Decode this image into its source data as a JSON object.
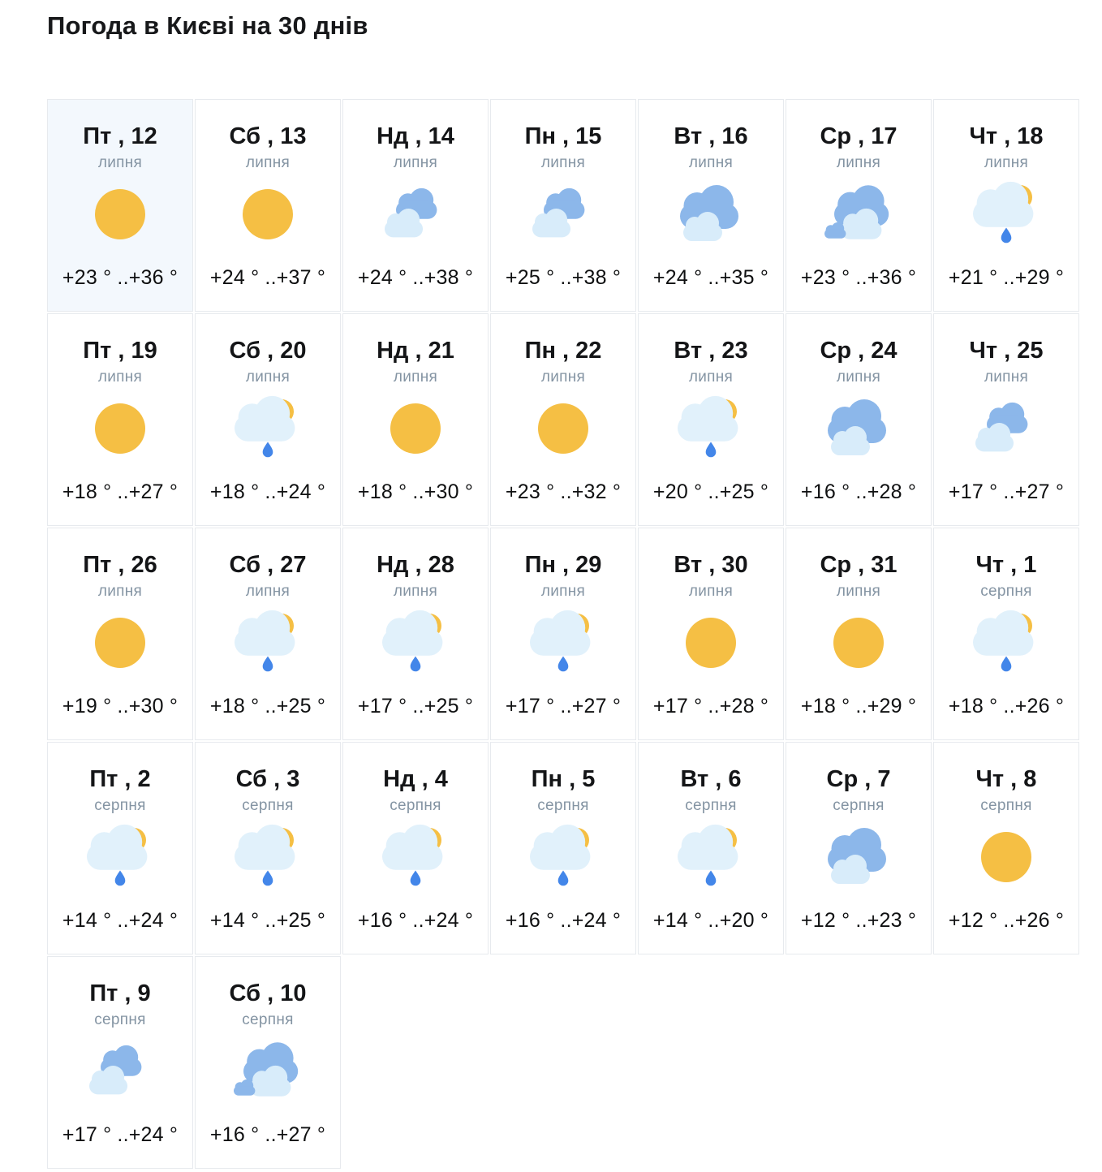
{
  "page": {
    "title": "Погода в Києві на 30 днів"
  },
  "colors": {
    "today_bg": "#f3f8fd",
    "card_border": "#e7eaee",
    "month_text": "#8494a3",
    "sun": "#f5bf44",
    "cloud_blue": "#8cb7ea",
    "cloud_light": "#d8ecfa",
    "cloud_pale": "#e1f1fb",
    "raindrop": "#4386e9"
  },
  "forecast": {
    "days": [
      {
        "label": "Пт , 12",
        "month": "липня",
        "icon": "sun",
        "temp": "+23 ° ..+36 °",
        "today": true
      },
      {
        "label": "Сб , 13",
        "month": "липня",
        "icon": "sun",
        "temp": "+24 ° ..+37 °",
        "today": false
      },
      {
        "label": "Нд , 14",
        "month": "липня",
        "icon": "cloudy",
        "temp": "+24 ° ..+38 °",
        "today": false
      },
      {
        "label": "Пн , 15",
        "month": "липня",
        "icon": "cloudy",
        "temp": "+25 ° ..+38 °",
        "today": false
      },
      {
        "label": "Вт , 16",
        "month": "липня",
        "icon": "mostly-cloudy",
        "temp": "+24 ° ..+35 °",
        "today": false
      },
      {
        "label": "Ср , 17",
        "month": "липня",
        "icon": "overcast",
        "temp": "+23 ° ..+36 °",
        "today": false
      },
      {
        "label": "Чт , 18",
        "month": "липня",
        "icon": "sun-rain",
        "temp": "+21 ° ..+29 °",
        "today": false
      },
      {
        "label": "Пт , 19",
        "month": "липня",
        "icon": "sun",
        "temp": "+18 ° ..+27 °",
        "today": false
      },
      {
        "label": "Сб , 20",
        "month": "липня",
        "icon": "sun-rain",
        "temp": "+18 ° ..+24 °",
        "today": false
      },
      {
        "label": "Нд , 21",
        "month": "липня",
        "icon": "sun",
        "temp": "+18 ° ..+30 °",
        "today": false
      },
      {
        "label": "Пн , 22",
        "month": "липня",
        "icon": "sun",
        "temp": "+23 ° ..+32 °",
        "today": false
      },
      {
        "label": "Вт , 23",
        "month": "липня",
        "icon": "sun-rain",
        "temp": "+20 ° ..+25 °",
        "today": false
      },
      {
        "label": "Ср , 24",
        "month": "липня",
        "icon": "mostly-cloudy",
        "temp": "+16 ° ..+28 °",
        "today": false
      },
      {
        "label": "Чт , 25",
        "month": "липня",
        "icon": "cloudy",
        "temp": "+17 ° ..+27 °",
        "today": false
      },
      {
        "label": "Пт , 26",
        "month": "липня",
        "icon": "sun",
        "temp": "+19 ° ..+30 °",
        "today": false
      },
      {
        "label": "Сб , 27",
        "month": "липня",
        "icon": "sun-rain",
        "temp": "+18 ° ..+25 °",
        "today": false
      },
      {
        "label": "Нд , 28",
        "month": "липня",
        "icon": "sun-rain",
        "temp": "+17 ° ..+25 °",
        "today": false
      },
      {
        "label": "Пн , 29",
        "month": "липня",
        "icon": "sun-rain",
        "temp": "+17 ° ..+27 °",
        "today": false
      },
      {
        "label": "Вт , 30",
        "month": "липня",
        "icon": "sun",
        "temp": "+17 ° ..+28 °",
        "today": false
      },
      {
        "label": "Ср , 31",
        "month": "липня",
        "icon": "sun",
        "temp": "+18 ° ..+29 °",
        "today": false
      },
      {
        "label": "Чт , 1",
        "month": "серпня",
        "icon": "sun-rain",
        "temp": "+18 ° ..+26 °",
        "today": false
      },
      {
        "label": "Пт , 2",
        "month": "серпня",
        "icon": "sun-rain",
        "temp": "+14 ° ..+24 °",
        "today": false
      },
      {
        "label": "Сб , 3",
        "month": "серпня",
        "icon": "sun-rain",
        "temp": "+14 ° ..+25 °",
        "today": false
      },
      {
        "label": "Нд , 4",
        "month": "серпня",
        "icon": "sun-rain",
        "temp": "+16 ° ..+24 °",
        "today": false
      },
      {
        "label": "Пн , 5",
        "month": "серпня",
        "icon": "sun-rain",
        "temp": "+16 ° ..+24 °",
        "today": false
      },
      {
        "label": "Вт , 6",
        "month": "серпня",
        "icon": "sun-rain",
        "temp": "+14 ° ..+20 °",
        "today": false
      },
      {
        "label": "Ср , 7",
        "month": "серпня",
        "icon": "mostly-cloudy",
        "temp": "+12 ° ..+23 °",
        "today": false
      },
      {
        "label": "Чт , 8",
        "month": "серпня",
        "icon": "sun",
        "temp": "+12 ° ..+26 °",
        "today": false
      },
      {
        "label": "Пт , 9",
        "month": "серпня",
        "icon": "cloudy",
        "temp": "+17 ° ..+24 °",
        "today": false
      },
      {
        "label": "Сб , 10",
        "month": "серпня",
        "icon": "overcast",
        "temp": "+16 ° ..+27 °",
        "today": false
      }
    ]
  }
}
